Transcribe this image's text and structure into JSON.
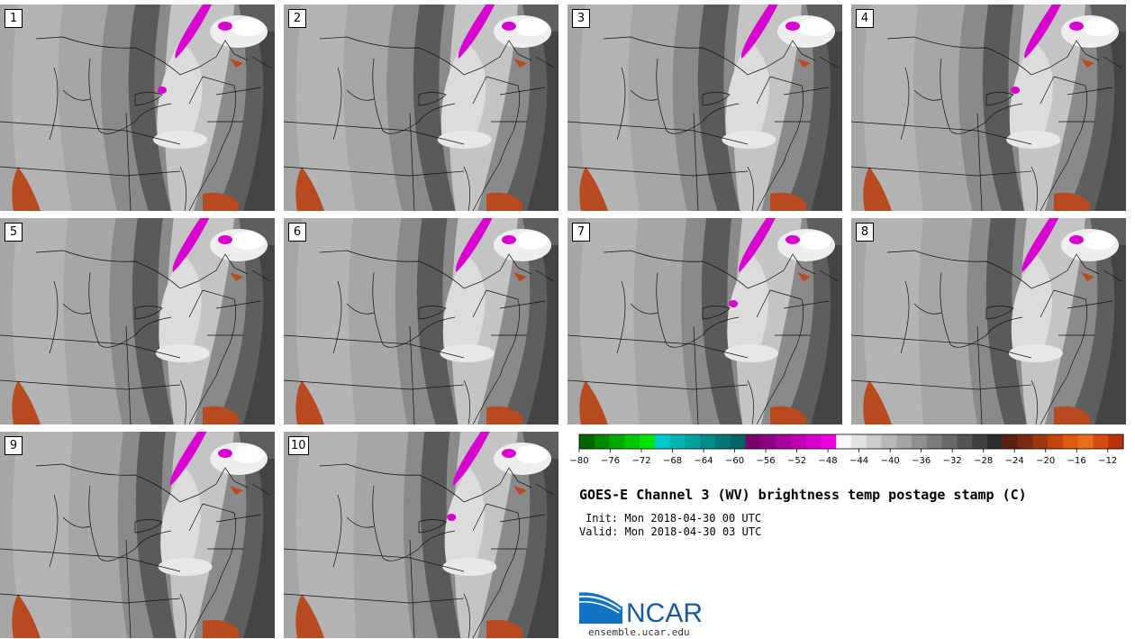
{
  "panels": [
    {
      "label": "1"
    },
    {
      "label": "2"
    },
    {
      "label": "3"
    },
    {
      "label": "4"
    },
    {
      "label": "5"
    },
    {
      "label": "6"
    },
    {
      "label": "7"
    },
    {
      "label": "8"
    },
    {
      "label": "9"
    },
    {
      "label": "10"
    }
  ],
  "colorbar": {
    "min": -80,
    "max": -10,
    "ticks": [
      "−80",
      "−76",
      "−72",
      "−68",
      "−64",
      "−60",
      "−56",
      "−52",
      "−48",
      "−44",
      "−40",
      "−36",
      "−32",
      "−28",
      "−24",
      "−20",
      "−16",
      "−12"
    ],
    "colors": [
      "#006400",
      "#008a00",
      "#00a800",
      "#00c800",
      "#00e600",
      "#00c8c8",
      "#00b4b4",
      "#00a0a0",
      "#008c8c",
      "#007878",
      "#006464",
      "#7a006e",
      "#900084",
      "#a8009a",
      "#c000b4",
      "#d800cc",
      "#ee00e2",
      "#f8f8f8",
      "#e2e2e2",
      "#cccccc",
      "#b8b8b8",
      "#a4a4a4",
      "#909090",
      "#7c7c7c",
      "#686868",
      "#545454",
      "#404040",
      "#2c2c2c",
      "#5a2010",
      "#7a2a10",
      "#a0360e",
      "#c0440c",
      "#e05a10",
      "#e8701a",
      "#d84a10",
      "#b83208"
    ]
  },
  "title": "GOES-E Channel 3 (WV) brightness temp postage stamp (C)",
  "init": "Init: Mon 2018-04-30 00 UTC",
  "valid": "Valid: Mon 2018-04-30 03 UTC",
  "logo": {
    "text": "NCAR",
    "color": "#1a5a9a"
  },
  "site": "ensemble.ucar.edu"
}
